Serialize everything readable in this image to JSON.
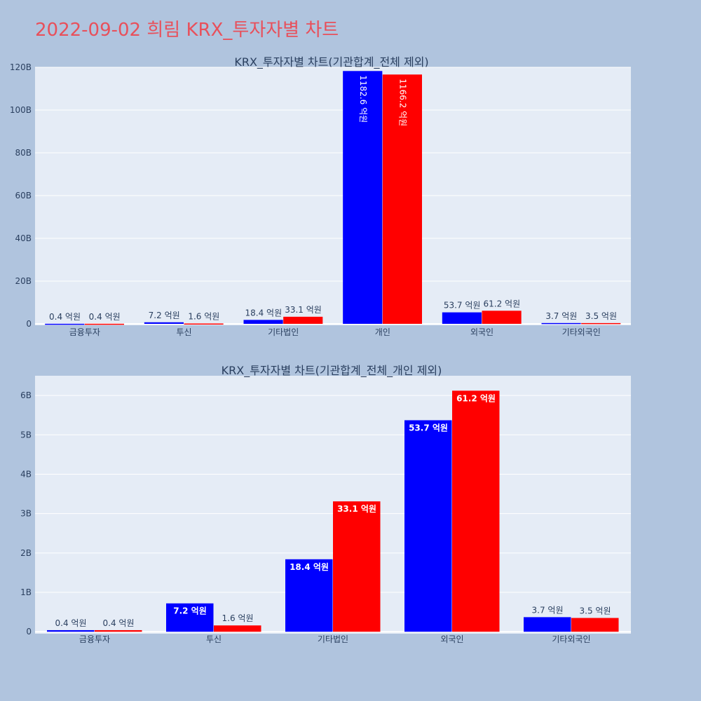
{
  "page_title": "2022-09-02 희림 KRX_투자자별 차트",
  "colors": {
    "series_a": "#0000ff",
    "series_b": "#ff0000",
    "plot_bg": "#e5ecf6",
    "page_bg": "#b0c4de",
    "title": "#e8505b"
  },
  "chart_data": [
    {
      "type": "bar",
      "title": "KRX_투자자별 차트(기관합계_전체 제외)",
      "categories": [
        "금융투자",
        "투신",
        "기타법인",
        "개인",
        "외국인",
        "기타외국인"
      ],
      "series": [
        {
          "color": "#0000ff",
          "values": [
            0.04,
            0.72,
            1.84,
            118.26,
            5.37,
            0.37
          ],
          "labels": [
            "0.4 억원",
            "7.2 억원",
            "18.4 억원",
            "1182.6 억원",
            "53.7 억원",
            "3.7 억원"
          ]
        },
        {
          "color": "#ff0000",
          "values": [
            0.04,
            0.16,
            3.31,
            116.62,
            6.12,
            0.35
          ],
          "labels": [
            "0.4 억원",
            "1.6 억원",
            "33.1 억원",
            "1166.2 억원",
            "61.2 억원",
            "3.5 억원"
          ]
        }
      ],
      "yticks": [
        "0",
        "20B",
        "40B",
        "60B",
        "80B",
        "100B",
        "120B"
      ],
      "ytick_values": [
        0,
        20,
        40,
        60,
        80,
        100,
        120
      ],
      "ylim": [
        -0.67,
        120
      ],
      "grid": true,
      "barmode": "group"
    },
    {
      "type": "bar",
      "title": "KRX_투자자별 차트(기관합계_전체_개인 제외)",
      "categories": [
        "금융투자",
        "투신",
        "기타법인",
        "외국인",
        "기타외국인"
      ],
      "series": [
        {
          "color": "#0000ff",
          "values": [
            0.04,
            0.72,
            1.84,
            5.37,
            0.37
          ],
          "labels": [
            "0.4 억원",
            "7.2 억원",
            "18.4 억원",
            "53.7 억원",
            "3.7 억원"
          ]
        },
        {
          "color": "#ff0000",
          "values": [
            0.04,
            0.16,
            3.31,
            6.12,
            0.35
          ],
          "labels": [
            "0.4 억원",
            "1.6 억원",
            "33.1 억원",
            "61.2 억원",
            "3.5 억원"
          ]
        }
      ],
      "yticks": [
        "0",
        "1B",
        "2B",
        "3B",
        "4B",
        "5B",
        "6B"
      ],
      "ytick_values": [
        0,
        1,
        2,
        3,
        4,
        5,
        6
      ],
      "ylim": [
        -0.05,
        6.5
      ],
      "grid": true,
      "barmode": "group"
    }
  ]
}
